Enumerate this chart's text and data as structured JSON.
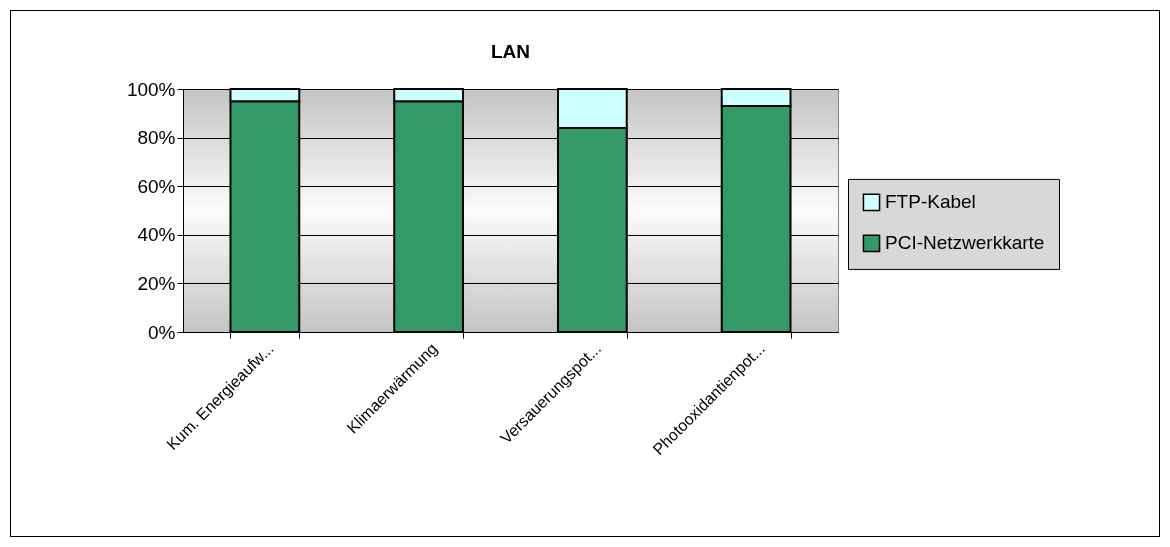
{
  "chart_data": {
    "type": "bar",
    "title": "LAN",
    "stacked": true,
    "categories": [
      "Kum. Energieaufw...",
      "Klimaerwärmung",
      "Versauerungspot...",
      "Photooxidantienpot..."
    ],
    "series": [
      {
        "name": "PCI-Netzwerkkarte",
        "color": "#339966",
        "values": [
          95,
          95,
          84,
          93
        ]
      },
      {
        "name": "FTP-Kabel",
        "color": "#ccffff",
        "values": [
          5,
          5,
          16,
          7
        ]
      }
    ],
    "ylim": [
      0,
      100
    ],
    "yticks": [
      {
        "value": 0,
        "label": "0%"
      },
      {
        "value": 20,
        "label": "20%"
      },
      {
        "value": 40,
        "label": "40%"
      },
      {
        "value": 60,
        "label": "60%"
      },
      {
        "value": 80,
        "label": "80%"
      },
      {
        "value": 100,
        "label": "100%"
      }
    ],
    "grid": "y",
    "legend": "right"
  }
}
